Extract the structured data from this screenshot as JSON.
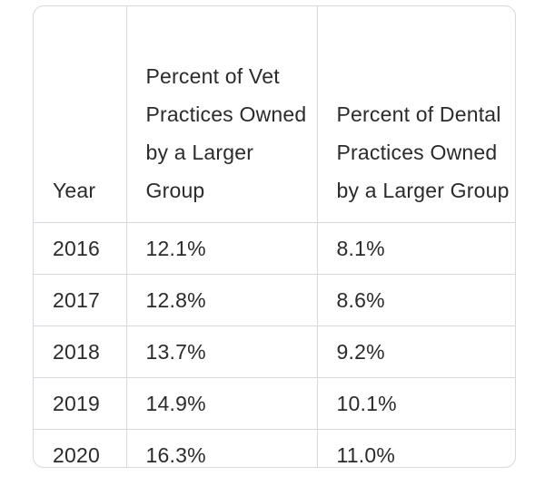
{
  "table": {
    "headers": [
      "Year",
      "Percent of Vet Practices Owned by a Larger Group",
      "Percent of Dental Practices Owned by a Larger Group"
    ],
    "rows": [
      [
        "2016",
        "12.1%",
        "8.1%"
      ],
      [
        "2017",
        "12.8%",
        "8.6%"
      ],
      [
        "2018",
        "13.7%",
        "9.2%"
      ],
      [
        "2019",
        "14.9%",
        "10.1%"
      ],
      [
        "2020",
        "16.3%",
        "11.0%"
      ]
    ]
  },
  "colors": {
    "border": "#d8d8de",
    "text": "#2b2b2e",
    "background": "#ffffff"
  }
}
